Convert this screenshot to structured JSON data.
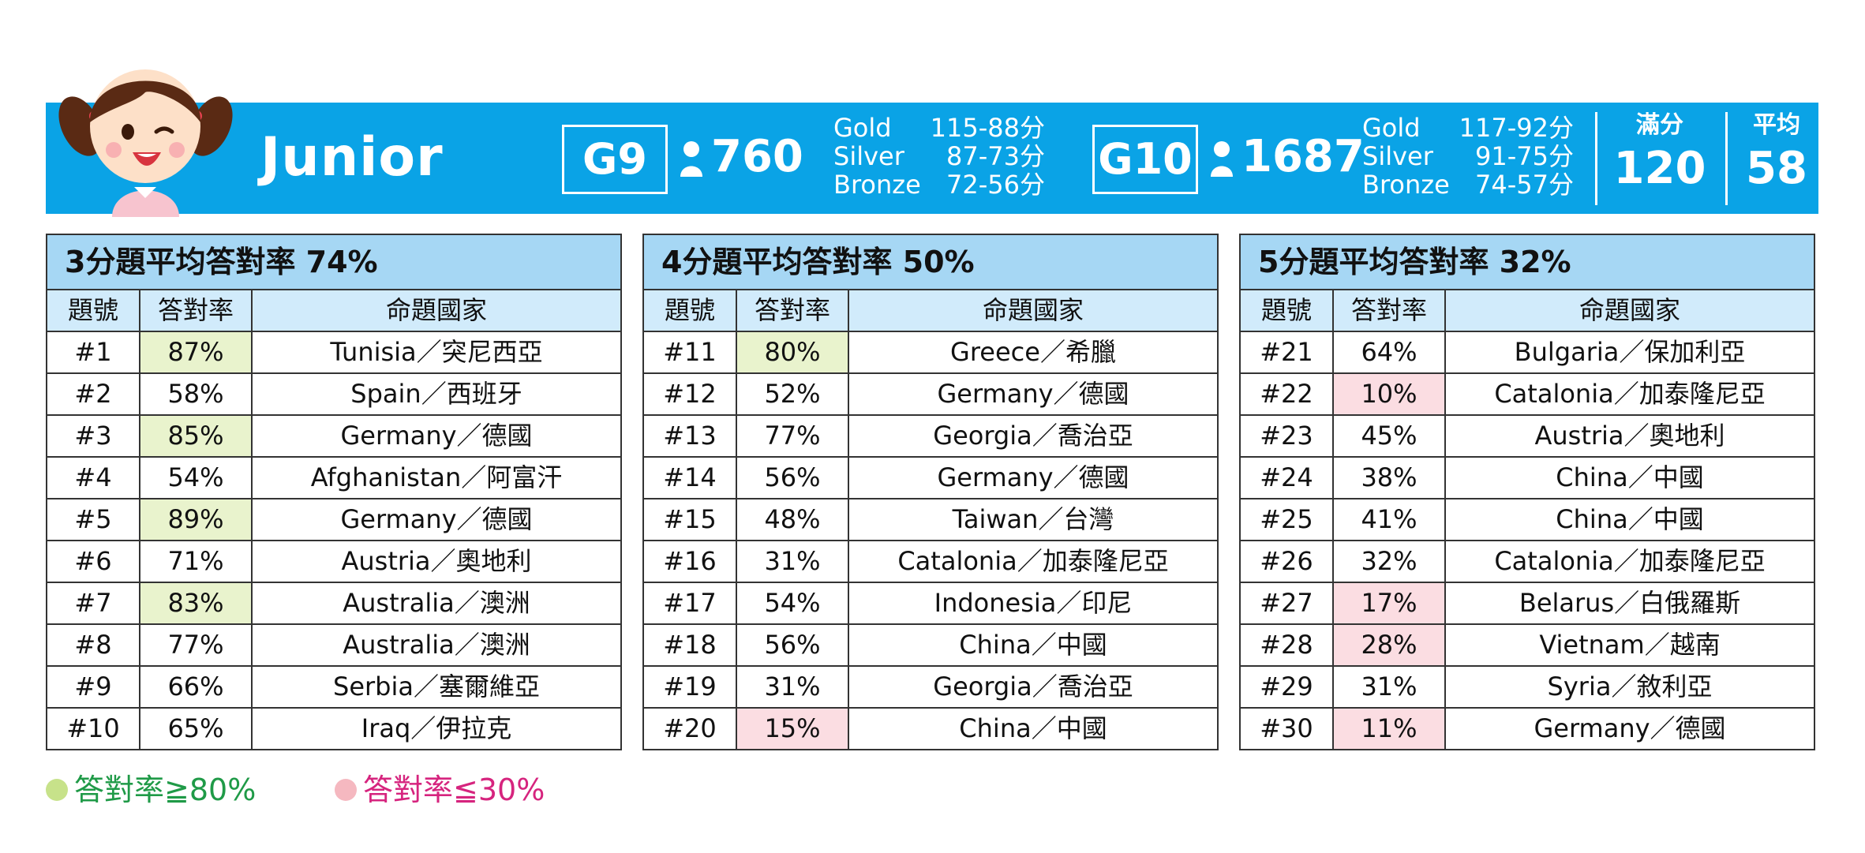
{
  "header": {
    "level": "Junior",
    "grades": [
      {
        "grade": "G9",
        "participants": "760",
        "medals": [
          {
            "name": "Gold",
            "range": "115-88分"
          },
          {
            "name": "Silver",
            "range": "87-73分"
          },
          {
            "name": "Bronze",
            "range": "72-56分"
          }
        ]
      },
      {
        "grade": "G10",
        "participants": "1687",
        "medals": [
          {
            "name": "Gold",
            "range": "117-92分"
          },
          {
            "name": "Silver",
            "range": "91-75分"
          },
          {
            "name": "Bronze",
            "range": "74-57分"
          }
        ]
      }
    ],
    "full_score": {
      "label": "滿分",
      "value": "120"
    },
    "average": {
      "label": "平均",
      "value": "58"
    }
  },
  "column_headers": {
    "number": "題號",
    "rate": "答對率",
    "country": "命題國家"
  },
  "tables": [
    {
      "title": "3分題平均答對率 74%",
      "rows": [
        {
          "no": "#1",
          "rate": "87%",
          "country": "Tunisia／突尼西亞",
          "flag": "high"
        },
        {
          "no": "#2",
          "rate": "58%",
          "country": "Spain／西班牙",
          "flag": ""
        },
        {
          "no": "#3",
          "rate": "85%",
          "country": "Germany／德國",
          "flag": "high"
        },
        {
          "no": "#4",
          "rate": "54%",
          "country": "Afghanistan／阿富汗",
          "flag": ""
        },
        {
          "no": "#5",
          "rate": "89%",
          "country": "Germany／德國",
          "flag": "high"
        },
        {
          "no": "#6",
          "rate": "71%",
          "country": "Austria／奧地利",
          "flag": ""
        },
        {
          "no": "#7",
          "rate": "83%",
          "country": "Australia／澳洲",
          "flag": "high"
        },
        {
          "no": "#8",
          "rate": "77%",
          "country": "Australia／澳洲",
          "flag": ""
        },
        {
          "no": "#9",
          "rate": "66%",
          "country": "Serbia／塞爾維亞",
          "flag": ""
        },
        {
          "no": "#10",
          "rate": "65%",
          "country": "Iraq／伊拉克",
          "flag": ""
        }
      ]
    },
    {
      "title": "4分題平均答對率 50%",
      "rows": [
        {
          "no": "#11",
          "rate": "80%",
          "country": "Greece／希臘",
          "flag": "high"
        },
        {
          "no": "#12",
          "rate": "52%",
          "country": "Germany／德國",
          "flag": ""
        },
        {
          "no": "#13",
          "rate": "77%",
          "country": "Georgia／喬治亞",
          "flag": ""
        },
        {
          "no": "#14",
          "rate": "56%",
          "country": "Germany／德國",
          "flag": ""
        },
        {
          "no": "#15",
          "rate": "48%",
          "country": "Taiwan／台灣",
          "flag": ""
        },
        {
          "no": "#16",
          "rate": "31%",
          "country": "Catalonia／加泰隆尼亞",
          "flag": ""
        },
        {
          "no": "#17",
          "rate": "54%",
          "country": "Indonesia／印尼",
          "flag": ""
        },
        {
          "no": "#18",
          "rate": "56%",
          "country": "China／中國",
          "flag": ""
        },
        {
          "no": "#19",
          "rate": "31%",
          "country": "Georgia／喬治亞",
          "flag": ""
        },
        {
          "no": "#20",
          "rate": "15%",
          "country": "China／中國",
          "flag": "low"
        }
      ]
    },
    {
      "title": "5分題平均答對率 32%",
      "rows": [
        {
          "no": "#21",
          "rate": "64%",
          "country": "Bulgaria／保加利亞",
          "flag": ""
        },
        {
          "no": "#22",
          "rate": "10%",
          "country": "Catalonia／加泰隆尼亞",
          "flag": "low"
        },
        {
          "no": "#23",
          "rate": "45%",
          "country": "Austria／奧地利",
          "flag": ""
        },
        {
          "no": "#24",
          "rate": "38%",
          "country": "China／中國",
          "flag": ""
        },
        {
          "no": "#25",
          "rate": "41%",
          "country": "China／中國",
          "flag": ""
        },
        {
          "no": "#26",
          "rate": "32%",
          "country": "Catalonia／加泰隆尼亞",
          "flag": ""
        },
        {
          "no": "#27",
          "rate": "17%",
          "country": "Belarus／白俄羅斯",
          "flag": "low"
        },
        {
          "no": "#28",
          "rate": "28%",
          "country": "Vietnam／越南",
          "flag": "low"
        },
        {
          "no": "#29",
          "rate": "31%",
          "country": "Syria／敘利亞",
          "flag": ""
        },
        {
          "no": "#30",
          "rate": "11%",
          "country": "Germany／德國",
          "flag": "low"
        }
      ]
    }
  ],
  "legend": [
    {
      "label": "答對率≧80%",
      "dot_color": "#c7e28a",
      "text_color": "#1f9a47"
    },
    {
      "label": "答對率≦30%",
      "dot_color": "#f5b8c0",
      "text_color": "#d6247e"
    }
  ],
  "colors": {
    "banner": "#0aa3e6",
    "title_row": "#a6d7f4",
    "header_row": "#d1ebfb",
    "high_cell": "#e9f3cd",
    "low_cell": "#fbdde2"
  }
}
